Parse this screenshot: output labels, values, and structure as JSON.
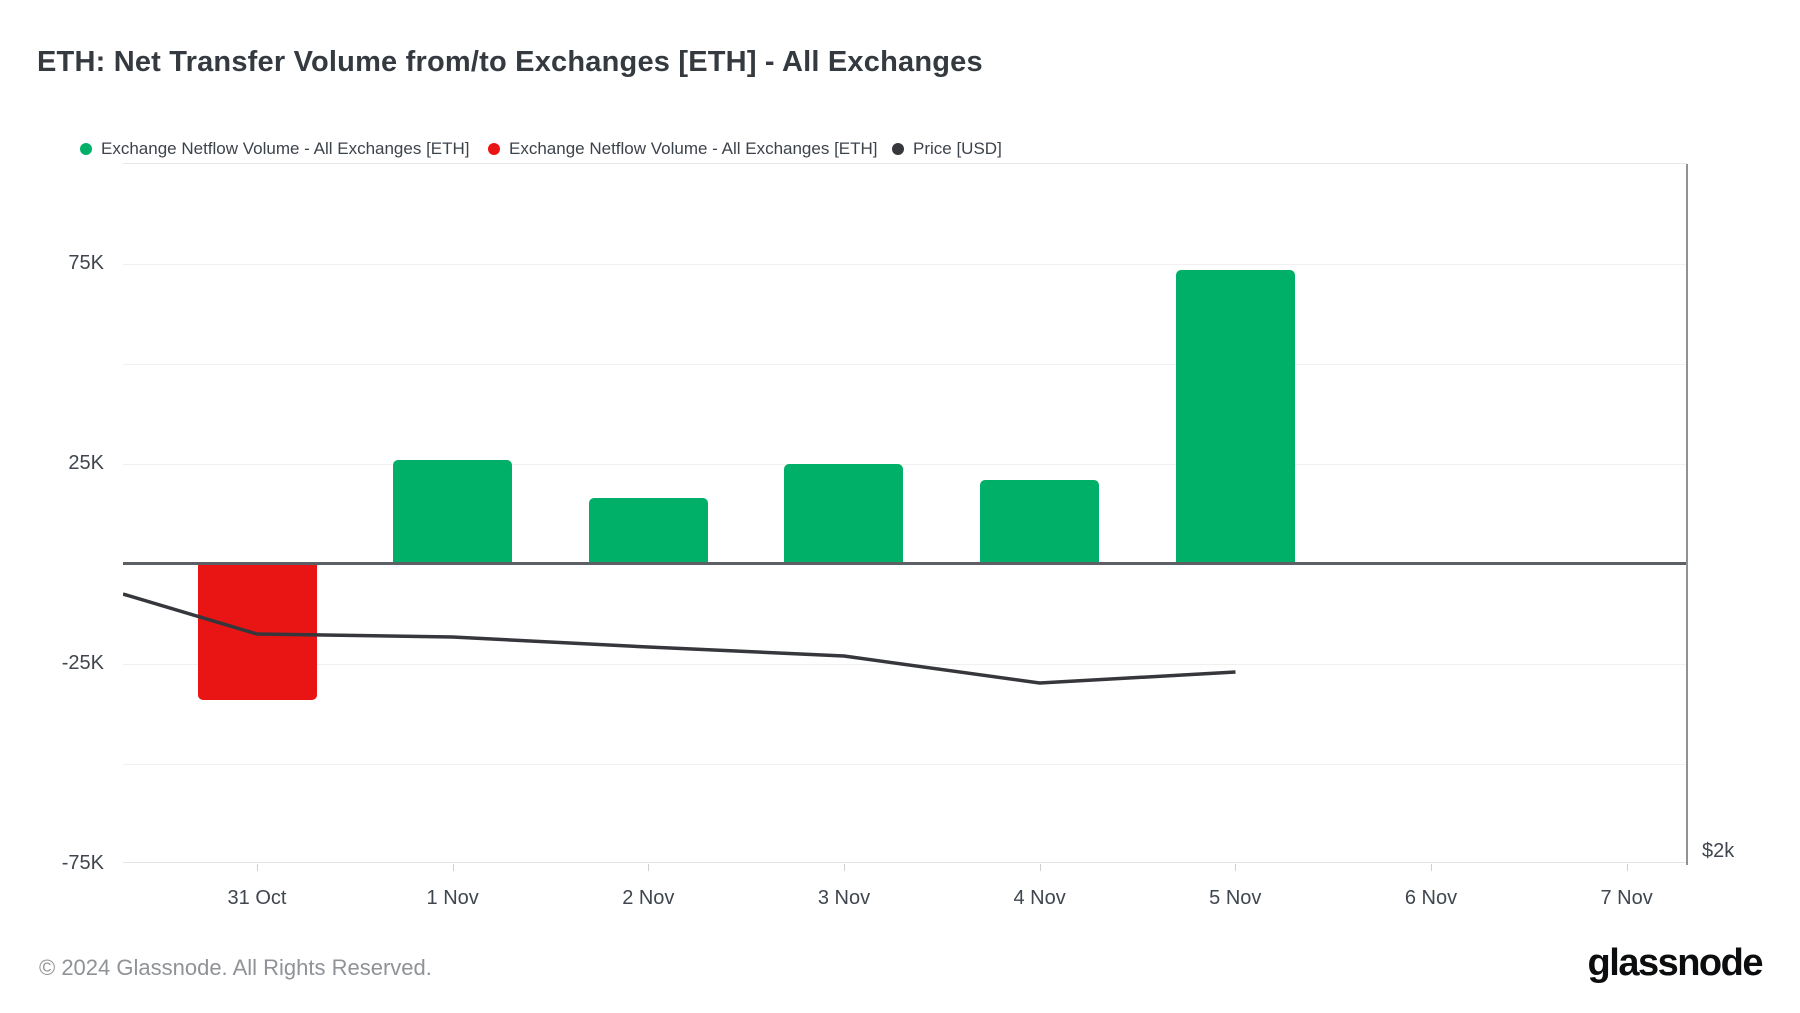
{
  "page": {
    "title": "ETH: Net Transfer Volume from/to Exchanges [ETH] - All Exchanges",
    "footer_copyright": "© 2024 Glassnode. All Rights Reserved.",
    "brand_logo_text": "glassnode"
  },
  "legend": {
    "items": [
      {
        "label": "Exchange Netflow Volume - All Exchanges [ETH]",
        "color": "#00b069",
        "marker": "dot"
      },
      {
        "label": "Exchange Netflow Volume - All Exchanges [ETH]",
        "color": "#e91414",
        "marker": "dot"
      },
      {
        "label": "Price [USD]",
        "color": "#35373c",
        "marker": "dot"
      }
    ]
  },
  "chart_data": {
    "type": "bar",
    "title": "ETH: Net Transfer Volume from/to Exchanges [ETH] - All Exchanges",
    "xlabel": "",
    "ylabel": "",
    "categories": [
      "31 Oct",
      "1 Nov",
      "2 Nov",
      "3 Nov",
      "4 Nov",
      "5 Nov",
      "6 Nov",
      "7 Nov"
    ],
    "series": [
      {
        "name": "Exchange Netflow Volume - All Exchanges [ETH]",
        "kind": "bar",
        "unit": "ETH",
        "values": [
          -34000,
          26000,
          16500,
          25000,
          21000,
          73500,
          null,
          null
        ],
        "positive_color": "#00b069",
        "negative_color": "#e91414"
      },
      {
        "name": "Price [USD]",
        "kind": "line",
        "unit": "USD",
        "axis": "right",
        "color": "#35373c",
        "note": "only visible right-axis reference label is $2k; points stored as fraction of plot width/height, line spans left plot edge through 5 Nov",
        "points_pct": [
          [
            0.0,
            0.6143
          ],
          [
            0.0857,
            0.6714
          ],
          [
            0.2107,
            0.6757
          ],
          [
            0.3359,
            0.69
          ],
          [
            0.461,
            0.7029
          ],
          [
            0.5861,
            0.7414
          ],
          [
            0.7113,
            0.7257
          ]
        ]
      }
    ],
    "y_axis_left": {
      "unit": "ETH",
      "range": [
        -75000,
        100000
      ],
      "gridline_step": 25000,
      "ticks": [
        {
          "label": "75K",
          "value": 75000
        },
        {
          "label": "25K",
          "value": 25000
        },
        {
          "label": "-25K",
          "value": -25000
        },
        {
          "label": "-75K",
          "value": -75000
        }
      ]
    },
    "y_axis_right": {
      "unit": "USD",
      "ticks": [
        {
          "label": "$2k",
          "value": 2000
        }
      ]
    },
    "grid": true,
    "legend_position": "top"
  }
}
